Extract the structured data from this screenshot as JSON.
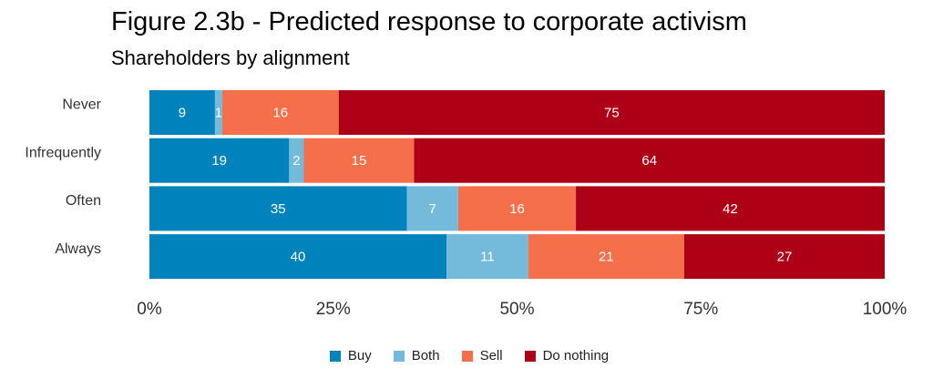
{
  "chart_data": {
    "type": "bar",
    "orientation": "horizontal",
    "stacked": true,
    "title": "Figure 2.3b - Predicted response to corporate activism",
    "subtitle": "Shareholders by alignment",
    "categories": [
      "Never",
      "Infrequently",
      "Often",
      "Always"
    ],
    "series": [
      {
        "name": "Buy",
        "values": [
          9,
          19,
          35,
          40
        ],
        "color": "#0083BD"
      },
      {
        "name": "Both",
        "values": [
          1,
          2,
          7,
          11
        ],
        "color": "#73BADB"
      },
      {
        "name": "Sell",
        "values": [
          16,
          15,
          16,
          21
        ],
        "color": "#F5704A"
      },
      {
        "name": "Do nothing",
        "values": [
          75,
          64,
          42,
          27
        ],
        "color": "#AD0017"
      }
    ],
    "xlim": [
      0,
      100
    ],
    "xticks": [
      "0%",
      "25%",
      "50%",
      "75%",
      "100%"
    ],
    "grid": false,
    "legend_position": "bottom"
  }
}
